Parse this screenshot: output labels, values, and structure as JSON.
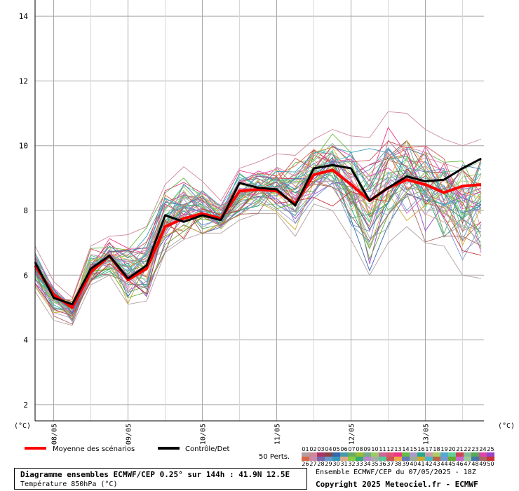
{
  "chart_data": {
    "type": "line",
    "ylabel_left": "(°C)",
    "ylabel_right": "(°C)",
    "ylim": [
      1.5,
      14.5
    ],
    "yticks": [
      2,
      4,
      6,
      8,
      10,
      12,
      14
    ],
    "x_day_labels": [
      "08/05",
      "09/05",
      "10/05",
      "11/05",
      "12/05",
      "13/05"
    ],
    "x": [
      "07/05 18Z",
      "08/05 00Z",
      "08/05 06Z",
      "08/05 12Z",
      "08/05 18Z",
      "09/05 00Z",
      "09/05 06Z",
      "09/05 12Z",
      "09/05 18Z",
      "10/05 00Z",
      "10/05 06Z",
      "10/05 12Z",
      "10/05 18Z",
      "11/05 00Z",
      "11/05 06Z",
      "11/05 12Z",
      "11/05 18Z",
      "12/05 00Z",
      "12/05 06Z",
      "12/05 12Z",
      "12/05 18Z",
      "13/05 00Z",
      "13/05 06Z",
      "13/05 12Z",
      "13/05 18Z"
    ],
    "series": [
      {
        "name": "Moyenne des scénarios",
        "color": "#ff0000",
        "values": [
          6.3,
          5.4,
          5.0,
          6.1,
          6.6,
          5.85,
          6.2,
          7.5,
          7.75,
          7.9,
          7.75,
          8.6,
          8.65,
          8.6,
          8.2,
          9.1,
          9.25,
          8.8,
          8.3,
          8.7,
          8.95,
          8.8,
          8.55,
          8.75,
          8.8
        ]
      },
      {
        "name": "Contrôle/Det",
        "color": "#000000",
        "values": [
          6.4,
          5.3,
          5.1,
          6.2,
          6.6,
          5.9,
          6.3,
          7.85,
          7.65,
          7.85,
          7.7,
          8.85,
          8.7,
          8.65,
          8.15,
          9.3,
          9.4,
          9.3,
          8.3,
          8.7,
          9.05,
          8.9,
          8.95,
          9.3,
          9.6
        ]
      }
    ],
    "ensemble_spread": {
      "low": [
        5.5,
        4.6,
        4.45,
        5.7,
        6.0,
        5.1,
        5.2,
        6.7,
        7.1,
        7.3,
        7.3,
        7.7,
        7.9,
        7.9,
        7.2,
        8.2,
        8.0,
        7.1,
        6.0,
        7.0,
        7.5,
        7.0,
        6.9,
        6.0,
        5.9
      ],
      "high": [
        6.9,
        5.8,
        5.3,
        6.9,
        7.2,
        7.25,
        7.5,
        8.8,
        9.35,
        8.9,
        8.3,
        9.3,
        9.5,
        9.75,
        9.7,
        10.2,
        10.5,
        10.3,
        10.25,
        11.05,
        11.0,
        10.5,
        10.2,
        10.0,
        10.2
      ]
    },
    "grid": true,
    "legend": {
      "mean_label": "Moyenne des scénarios",
      "control_label": "Contrôle/Det",
      "perts_label": "50 Perts.",
      "member_numbers_row1": [
        "01",
        "02",
        "03",
        "04",
        "05",
        "06",
        "07",
        "08",
        "09",
        "10",
        "11",
        "12",
        "13",
        "14",
        "15",
        "16",
        "17",
        "18",
        "19",
        "20",
        "21",
        "22",
        "23",
        "24",
        "25"
      ],
      "member_numbers_row2": [
        "26",
        "27",
        "28",
        "29",
        "30",
        "31",
        "32",
        "33",
        "34",
        "35",
        "36",
        "37",
        "38",
        "39",
        "40",
        "41",
        "42",
        "43",
        "44",
        "45",
        "46",
        "47",
        "48",
        "49",
        "50"
      ],
      "member_colors": [
        "#b3a0a0",
        "#cc8899",
        "#aa3366",
        "#884444",
        "#3366aa",
        "#4499aa",
        "#66aa66",
        "#99bb33",
        "#77aa88",
        "#99cc66",
        "#cc6699",
        "#dd5577",
        "#ee3388",
        "#66bb44",
        "#aa99cc",
        "#22aa88",
        "#cc99aa",
        "#aacc66",
        "#55aacc",
        "#66cc99",
        "#cc4455",
        "#88bb99",
        "#55aa55",
        "#dd44aa",
        "#9944cc",
        "#dd6644",
        "#cc88aa",
        "#7766aa",
        "#6699cc",
        "#3399bb",
        "#ddaa88",
        "#88cc44",
        "#33aa77",
        "#bb88cc",
        "#aaaaaa",
        "#55cc99",
        "#cc5555",
        "#eeaa44",
        "#6677bb",
        "#99aa99",
        "#ccaa33",
        "#44bbcc",
        "#bb6644",
        "#7799cc",
        "#66aa33",
        "#cc66cc",
        "#99cc99",
        "#4477aa",
        "#aa6666",
        "#cc3333"
      ]
    },
    "title": "Diagramme ensembles ECMWF/CEP 0.25° sur 144h : 41.9N 12.5E",
    "subtitle": "Température 850hPa (°C)"
  },
  "footer": {
    "run_text": "Ensemble ECMWF/CEP du 07/05/2025 - 18Z",
    "copyright": "Copyright 2025 Meteociel.fr - ECMWF"
  }
}
